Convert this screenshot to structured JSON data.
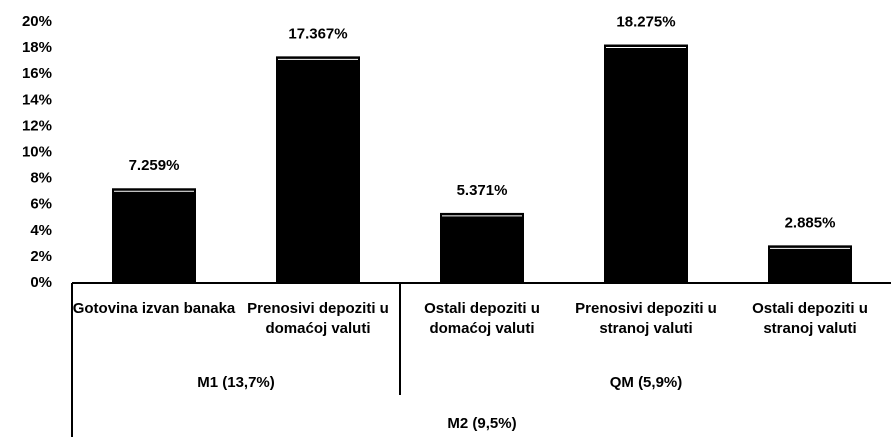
{
  "chart_data": {
    "type": "bar",
    "category_groups": [
      {
        "label": "M1  (13,7%)",
        "categories": [
          "Gotovina izvan banaka",
          "Prenosivi depoziti u domaćoj valuti"
        ]
      },
      {
        "label": "QM  (5,9%)",
        "categories": [
          "Ostali depoziti u domaćoj valuti",
          "Prenosivi depoziti u stranoj valuti",
          "Ostali depoziti u stranoj valuti"
        ]
      }
    ],
    "outer_group": "M2  (9,5%)",
    "values": [
      7.259,
      17.367,
      5.371,
      18.275,
      2.885
    ],
    "value_labels": [
      "7.259%",
      "17.367%",
      "5.371%",
      "18.275%",
      "2.885%"
    ],
    "color": "#000000",
    "ylim": [
      0,
      20
    ],
    "yticks": [
      {
        "value": 0,
        "label": "0%"
      },
      {
        "value": 2,
        "label": "2%"
      },
      {
        "value": 4,
        "label": "4%"
      },
      {
        "value": 6,
        "label": "6%"
      },
      {
        "value": 8,
        "label": "8%"
      },
      {
        "value": 10,
        "label": "10%"
      },
      {
        "value": 12,
        "label": "12%"
      },
      {
        "value": 14,
        "label": "14%"
      },
      {
        "value": 16,
        "label": "16%"
      },
      {
        "value": 18,
        "label": "18%"
      },
      {
        "value": 20,
        "label": "20%"
      }
    ]
  }
}
